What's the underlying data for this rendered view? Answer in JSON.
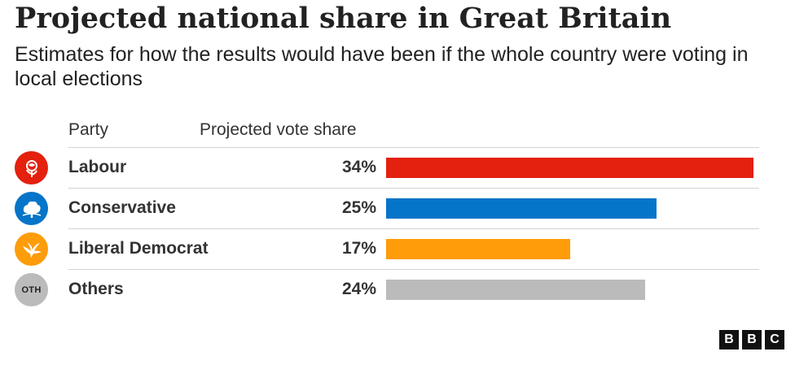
{
  "chart_data": {
    "type": "bar",
    "title": "Projected national share in Great Britain",
    "subtitle": "Estimates for how the results would have been if the whole country were voting in local elections",
    "column_headers": {
      "party": "Party",
      "share": "Projected vote share"
    },
    "categories": [
      "Labour",
      "Conservative",
      "Liberal Democrat",
      "Others"
    ],
    "values": [
      34,
      25,
      17,
      24
    ],
    "value_labels": [
      "34%",
      "25%",
      "17%",
      "24%"
    ],
    "unit": "%",
    "colors": [
      "#e4200e",
      "#0575c9",
      "#fe9c0a",
      "#bbbbbb"
    ],
    "icons": [
      "labour-rose-icon",
      "conservative-tree-icon",
      "libdem-bird-icon",
      "others-badge-icon"
    ],
    "badge_texts": [
      "",
      "",
      "",
      "OTH"
    ],
    "xlim": [
      0,
      34
    ],
    "grid": false,
    "legend": "none"
  },
  "footer": {
    "logo_letters": [
      "B",
      "B",
      "C"
    ]
  }
}
